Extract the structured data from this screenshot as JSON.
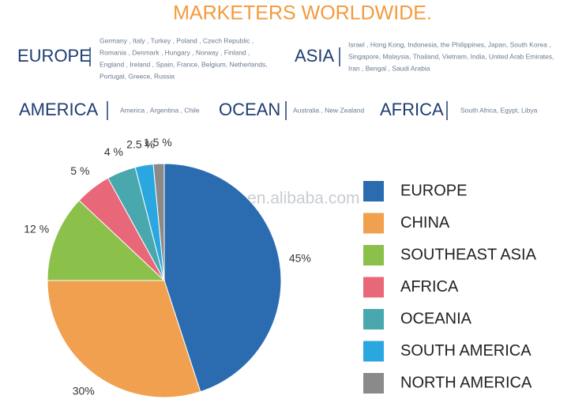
{
  "header": {
    "title": "MARKETERS WORLDWIDE."
  },
  "regions": [
    {
      "name": "EUROPE",
      "lines": [
        "Germany , Italy , Turkey , Poland , Czech Republic ,",
        "Romania , Denmark , Hungary , Norway , Finland ,",
        "England , Ireland , Spain, France, Belgium, Netherlands,",
        "Portugal, Greece, Russia"
      ]
    },
    {
      "name": "ASIA",
      "lines": [
        "Israel , Hong Kong, Indonesia, the Philippines, Japan, South Korea ,",
        "Singapore, Malaysia, Thailand, Vietnam, India, United Arab Emirates,",
        "Iran , Bengal , Saudi Arabia"
      ]
    },
    {
      "name": "AMERICA",
      "lines": [
        "America , Argentina , Chile"
      ]
    },
    {
      "name": "OCEAN",
      "lines": [
        "Australia , New Zealand"
      ]
    },
    {
      "name": "AFRICA",
      "lines": [
        "South Africa, Egypt, Libya"
      ]
    }
  ],
  "watermark": "vanoparts.en.alibaba.com",
  "chart_data": {
    "type": "pie",
    "categories": [
      "EUROPE",
      "CHINA",
      "SOUTHEAST ASIA",
      "AFRICA",
      "OCEANIA",
      "SOUTH AMERICA",
      "NORTH AMERICA"
    ],
    "values": [
      45,
      30,
      12,
      5,
      4,
      2.5,
      1.5
    ],
    "value_labels": [
      "45%",
      "30%",
      "12 %",
      "5 %",
      "4 %",
      "2.5 %",
      "1.5 %"
    ],
    "colors": [
      "#2b6cb0",
      "#f0a04f",
      "#8bc04a",
      "#e8687a",
      "#49a8ad",
      "#2ba7df",
      "#8a8a8a"
    ]
  }
}
